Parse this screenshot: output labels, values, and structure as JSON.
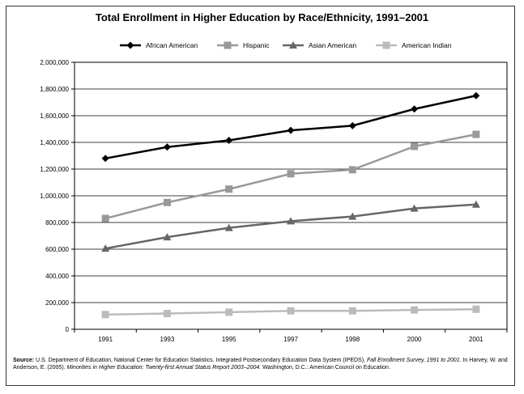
{
  "chart_data": {
    "type": "line",
    "title": "Total Enrollment in Higher Education by Race/Ethnicity, 1991–2001",
    "categories": [
      "1991",
      "1993",
      "1995",
      "1997",
      "1998",
      "2000",
      "2001"
    ],
    "ylim": [
      0,
      2000000
    ],
    "yticks": [
      "0",
      "200,000",
      "400,000",
      "600,000",
      "800,000",
      "1,000,000",
      "1,200,000",
      "1,400,000",
      "1,600,000",
      "1,800,000",
      "2,000,000"
    ],
    "ytick_values": [
      0,
      200000,
      400000,
      600000,
      800000,
      1000000,
      1200000,
      1400000,
      1600000,
      1800000,
      2000000
    ],
    "grid": true,
    "legend_position": "top",
    "series": [
      {
        "name": "African American",
        "color": "#000000",
        "marker": "diamond",
        "values": [
          1280000,
          1365000,
          1415000,
          1490000,
          1525000,
          1650000,
          1750000
        ]
      },
      {
        "name": "Hispanic",
        "color": "#999999",
        "marker": "square",
        "values": [
          830000,
          950000,
          1050000,
          1165000,
          1195000,
          1370000,
          1460000
        ]
      },
      {
        "name": "Asian American",
        "color": "#666666",
        "marker": "triangle",
        "values": [
          605000,
          690000,
          760000,
          810000,
          845000,
          905000,
          935000
        ]
      },
      {
        "name": "American Indian",
        "color": "#bbbbbb",
        "marker": "square",
        "values": [
          110000,
          118000,
          128000,
          138000,
          138000,
          145000,
          150000
        ]
      }
    ]
  },
  "source": {
    "label": "Source:",
    "text1": " U.S. Department of Education, National Center for Education Statistics. Integrated Postsecondary Education Data System (IPEDS), ",
    "italic1": "Fall Enrollment Survey, 1991 to 2001.",
    "text2": " In Harvey, W. and Anderson, E. (2005). ",
    "italic2": "Minorities in Higher Education: Twenty-first Annual Status Report 2003–2004.",
    "text3": " Washington, D.C.: American Council on Education."
  }
}
